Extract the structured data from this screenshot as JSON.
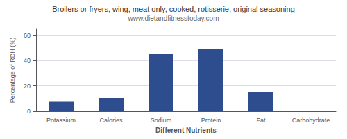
{
  "chart_data": {
    "type": "bar",
    "title": "Broilers or fryers, wing, meat only, cooked, rotisserie, original seasoning",
    "subtitle": "www.dietandfitnesstoday.com",
    "categories": [
      "Potassium",
      "Calories",
      "Sodium",
      "Protein",
      "Fat",
      "Carbohydrate"
    ],
    "values": [
      7.5,
      10.5,
      45.5,
      49.5,
      15.0,
      0.4
    ],
    "color": "#2e4d8e",
    "xlabel": "Different Nutrients",
    "ylabel": "Percentage of RDH (%)",
    "ylim": [
      0,
      65
    ],
    "yticks": [
      0,
      20,
      40,
      60
    ],
    "grid": true
  }
}
